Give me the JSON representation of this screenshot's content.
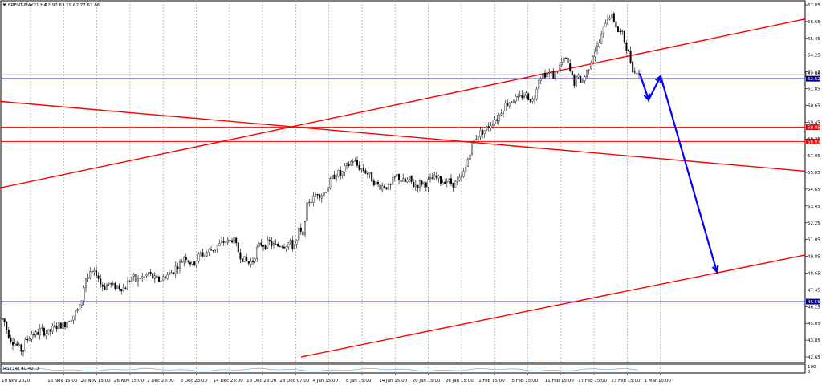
{
  "header": {
    "symbol": "BRENT-MAY21,H4",
    "ohlc": "62.92 63.19 62.77 62.86"
  },
  "rsi_label": "RSI(14) 40.4213",
  "indicator_axis_labels": [
    "100",
    "0"
  ],
  "colors": {
    "bull": "#000000",
    "bear": "#000000",
    "trendline": "#ff0000",
    "hline_blue": "#00008b",
    "hline_red": "#ff0000",
    "forecast": "#0000ff",
    "grid": "#b0b0b0",
    "rsi": "#7ab8e8"
  },
  "chart_data": {
    "type": "candlestick",
    "title": "BRENT-MAY21,H4",
    "y_ticks": [
      "67.85",
      "66.65",
      "65.45",
      "64.25",
      "63.05",
      "61.85",
      "60.65",
      "59.45",
      "58.25",
      "57.05",
      "55.85",
      "54.65",
      "53.45",
      "52.25",
      "51.05",
      "49.85",
      "48.65",
      "47.45",
      "46.25",
      "45.05",
      "43.85",
      "42.65"
    ],
    "ylim": [
      42.2,
      68.1
    ],
    "x_ticks": [
      "10 Nov 2020",
      "16 Nov 15:00",
      "20 Nov 15:00",
      "26 Nov 15:00",
      "2 Dec 23:00",
      "8 Dec 23:00",
      "14 Dec 23:00",
      "18 Dec 23:00",
      "28 Dec 07:00",
      "4 Jan 15:00",
      "8 Jan 15:00",
      "14 Jan 15:00",
      "20 Jan 15:00",
      "26 Jan 15:00",
      "1 Feb 15:00",
      "5 Feb 15:00",
      "11 Feb 15:00",
      "17 Feb 15:00",
      "23 Feb 15:00",
      "1 Mar 15:00"
    ],
    "close_path": [
      [
        0,
        45.0
      ],
      [
        4,
        45.4
      ],
      [
        8,
        44.6
      ],
      [
        12,
        44.0
      ],
      [
        16,
        43.7
      ],
      [
        20,
        43.5
      ],
      [
        24,
        43.2
      ],
      [
        28,
        43.0
      ],
      [
        32,
        43.7
      ],
      [
        36,
        44.0
      ],
      [
        40,
        44.3
      ],
      [
        45,
        44.2
      ],
      [
        50,
        44.5
      ],
      [
        55,
        44.4
      ],
      [
        60,
        44.3
      ],
      [
        65,
        44.6
      ],
      [
        70,
        44.8
      ],
      [
        75,
        44.9
      ],
      [
        80,
        44.9
      ],
      [
        85,
        45.3
      ],
      [
        90,
        45.5
      ],
      [
        95,
        45.8
      ],
      [
        100,
        46.2
      ],
      [
        103,
        47.1
      ],
      [
        106,
        48.2
      ],
      [
        110,
        48.3
      ],
      [
        114,
        48.6
      ],
      [
        118,
        48.5
      ],
      [
        121,
        48.7
      ],
      [
        124,
        47.9
      ],
      [
        130,
        47.6
      ],
      [
        136,
        47.9
      ],
      [
        140,
        47.6
      ],
      [
        145,
        47.7
      ],
      [
        150,
        47.6
      ],
      [
        155,
        47.5
      ],
      [
        160,
        48.0
      ],
      [
        165,
        48.4
      ],
      [
        170,
        48.0
      ],
      [
        175,
        48.3
      ],
      [
        180,
        48.3
      ],
      [
        185,
        48.6
      ],
      [
        190,
        48.3
      ],
      [
        195,
        48.1
      ],
      [
        200,
        48.1
      ],
      [
        205,
        48.4
      ],
      [
        210,
        48.5
      ],
      [
        215,
        48.7
      ],
      [
        220,
        49.1
      ],
      [
        225,
        49.3
      ],
      [
        230,
        49.9
      ],
      [
        235,
        49.5
      ],
      [
        240,
        49.2
      ],
      [
        245,
        49.6
      ],
      [
        250,
        50.0
      ],
      [
        255,
        49.9
      ],
      [
        260,
        50.2
      ],
      [
        265,
        50.3
      ],
      [
        270,
        50.5
      ],
      [
        275,
        50.7
      ],
      [
        280,
        50.9
      ],
      [
        285,
        50.8
      ],
      [
        290,
        51.1
      ],
      [
        295,
        50.4
      ],
      [
        300,
        49.8
      ],
      [
        305,
        49.5
      ],
      [
        310,
        49.3
      ],
      [
        315,
        49.5
      ],
      [
        320,
        50.3
      ],
      [
        325,
        50.7
      ],
      [
        330,
        50.6
      ],
      [
        335,
        50.8
      ],
      [
        340,
        50.6
      ],
      [
        345,
        50.5
      ],
      [
        350,
        50.7
      ],
      [
        355,
        50.6
      ],
      [
        360,
        50.8
      ],
      [
        365,
        50.5
      ],
      [
        370,
        50.9
      ],
      [
        373,
        51.9
      ],
      [
        377,
        50.9
      ],
      [
        381,
        53.1
      ],
      [
        385,
        53.8
      ],
      [
        390,
        53.9
      ],
      [
        395,
        54.4
      ],
      [
        400,
        54.2
      ],
      [
        405,
        54.5
      ],
      [
        410,
        55.0
      ],
      [
        415,
        55.5
      ],
      [
        420,
        55.8
      ],
      [
        425,
        55.6
      ],
      [
        430,
        56.1
      ],
      [
        435,
        56.4
      ],
      [
        440,
        56.7
      ],
      [
        445,
        56.3
      ],
      [
        450,
        56.1
      ],
      [
        455,
        55.9
      ],
      [
        460,
        55.6
      ],
      [
        465,
        55.2
      ],
      [
        470,
        54.9
      ],
      [
        475,
        54.8
      ],
      [
        480,
        54.9
      ],
      [
        485,
        54.6
      ],
      [
        490,
        55.3
      ],
      [
        495,
        55.6
      ],
      [
        500,
        55.2
      ],
      [
        505,
        55.1
      ],
      [
        510,
        55.3
      ],
      [
        515,
        54.9
      ],
      [
        520,
        54.9
      ],
      [
        525,
        55.1
      ],
      [
        530,
        55.0
      ],
      [
        535,
        55.2
      ],
      [
        540,
        55.4
      ],
      [
        545,
        55.4
      ],
      [
        550,
        55.1
      ],
      [
        555,
        55.3
      ],
      [
        560,
        55.1
      ],
      [
        565,
        55.0
      ],
      [
        570,
        55.1
      ],
      [
        575,
        55.4
      ],
      [
        580,
        56.1
      ],
      [
        585,
        57.3
      ],
      [
        590,
        58.0
      ],
      [
        595,
        58.5
      ],
      [
        600,
        58.7
      ],
      [
        605,
        58.9
      ],
      [
        610,
        59.2
      ],
      [
        615,
        59.6
      ],
      [
        620,
        59.7
      ],
      [
        625,
        60.3
      ],
      [
        630,
        60.7
      ],
      [
        635,
        60.9
      ],
      [
        640,
        61.1
      ],
      [
        645,
        61.0
      ],
      [
        650,
        61.3
      ],
      [
        655,
        61.4
      ],
      [
        660,
        61.1
      ],
      [
        665,
        60.9
      ],
      [
        670,
        62.5
      ],
      [
        675,
        62.8
      ],
      [
        680,
        62.9
      ],
      [
        685,
        62.9
      ],
      [
        690,
        62.7
      ],
      [
        695,
        63.2
      ],
      [
        700,
        63.7
      ],
      [
        705,
        63.9
      ],
      [
        710,
        63.1
      ],
      [
        715,
        62.2
      ],
      [
        720,
        62.6
      ],
      [
        725,
        62.3
      ],
      [
        730,
        62.9
      ],
      [
        735,
        63.6
      ],
      [
        740,
        64.5
      ],
      [
        745,
        64.8
      ],
      [
        750,
        65.7
      ],
      [
        755,
        66.8
      ],
      [
        760,
        67.1
      ],
      [
        765,
        66.7
      ],
      [
        770,
        65.9
      ],
      [
        775,
        65.7
      ],
      [
        780,
        64.9
      ],
      [
        785,
        63.9
      ],
      [
        790,
        62.9
      ],
      [
        795,
        63.3
      ],
      [
        800,
        62.86
      ]
    ],
    "trendlines": [
      {
        "from": [
          "0",
          "54.7"
        ],
        "to": [
          "1003",
          "66.8"
        ]
      },
      {
        "from": [
          "0",
          "60.9"
        ],
        "to": [
          "1003",
          "55.9"
        ]
      },
      {
        "from": [
          "375",
          "42.6"
        ],
        "to": [
          "1003",
          "49.9"
        ]
      }
    ],
    "horizontal_levels": [
      {
        "label": "62.86",
        "value": 62.86,
        "kind": "price"
      },
      {
        "label": "62.52",
        "value": 62.52,
        "kind": "blue"
      },
      {
        "label": "59.05",
        "value": 59.05,
        "kind": "red"
      },
      {
        "label": "58.03",
        "value": 58.03,
        "kind": "red"
      },
      {
        "label": "46.56",
        "value": 46.56,
        "kind": "blue"
      }
    ],
    "forecast_path": [
      [
        797,
        62.9
      ],
      [
        808,
        61.0
      ],
      [
        823,
        62.7
      ],
      [
        893,
        48.7
      ]
    ]
  }
}
